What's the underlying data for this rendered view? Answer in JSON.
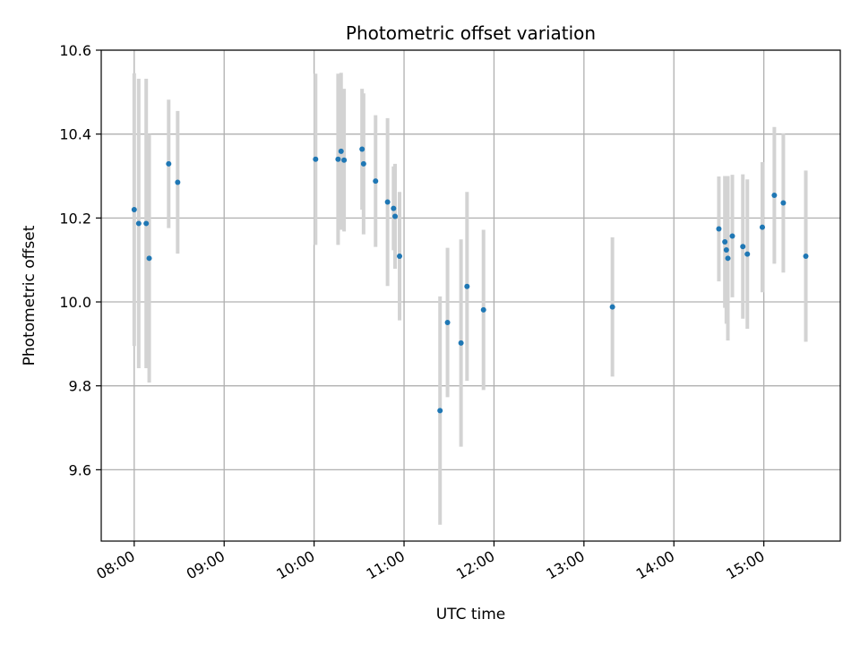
{
  "chart_data": {
    "type": "scatter",
    "title": "Photometric offset variation",
    "xlabel": "UTC time",
    "ylabel": "Photometric offset",
    "x_tick_labels": [
      "08:00",
      "09:00",
      "10:00",
      "11:00",
      "12:00",
      "13:00",
      "14:00",
      "15:00"
    ],
    "y_tick_labels": [
      "9.6",
      "9.8",
      "10.0",
      "10.2",
      "10.4",
      "10.6"
    ],
    "y_ticks": [
      9.6,
      9.8,
      10.0,
      10.2,
      10.4,
      10.6
    ],
    "xlim": [
      "07:38",
      "15:51"
    ],
    "ylim": [
      9.43,
      10.6
    ],
    "grid": true,
    "colors": {
      "point": "#1f77b4",
      "errorbar": "#d3d3d3",
      "grid": "#b0b0b0"
    },
    "series": [
      {
        "points": [
          {
            "x": "08:00",
            "y": 10.22,
            "err": 0.325
          },
          {
            "x": "08:03",
            "y": 10.187,
            "err": 0.345
          },
          {
            "x": "08:08",
            "y": 10.187,
            "err": 0.345
          },
          {
            "x": "08:10",
            "y": 10.104,
            "err": 0.296
          },
          {
            "x": "08:23",
            "y": 10.329,
            "err": 0.153
          },
          {
            "x": "08:29",
            "y": 10.285,
            "err": 0.17
          },
          {
            "x": "10:01",
            "y": 10.34,
            "err": 0.204
          },
          {
            "x": "10:16",
            "y": 10.34,
            "err": 0.204
          },
          {
            "x": "10:18",
            "y": 10.359,
            "err": 0.187
          },
          {
            "x": "10:20",
            "y": 10.338,
            "err": 0.17
          },
          {
            "x": "10:32",
            "y": 10.364,
            "err": 0.144
          },
          {
            "x": "10:33",
            "y": 10.329,
            "err": 0.168
          },
          {
            "x": "10:41",
            "y": 10.288,
            "err": 0.157
          },
          {
            "x": "10:49",
            "y": 10.238,
            "err": 0.2
          },
          {
            "x": "10:53",
            "y": 10.223,
            "err": 0.1
          },
          {
            "x": "10:54",
            "y": 10.204,
            "err": 0.125
          },
          {
            "x": "10:57",
            "y": 10.109,
            "err": 0.153
          },
          {
            "x": "11:24",
            "y": 9.741,
            "err": 0.272
          },
          {
            "x": "11:29",
            "y": 9.951,
            "err": 0.178
          },
          {
            "x": "11:38",
            "y": 9.902,
            "err": 0.247
          },
          {
            "x": "11:42",
            "y": 10.037,
            "err": 0.225
          },
          {
            "x": "11:53",
            "y": 9.981,
            "err": 0.191
          },
          {
            "x": "13:19",
            "y": 9.988,
            "err": 0.166
          },
          {
            "x": "14:30",
            "y": 10.174,
            "err": 0.125
          },
          {
            "x": "14:34",
            "y": 10.143,
            "err": 0.157
          },
          {
            "x": "14:35",
            "y": 10.124,
            "err": 0.176
          },
          {
            "x": "14:36",
            "y": 10.104,
            "err": 0.196
          },
          {
            "x": "14:39",
            "y": 10.157,
            "err": 0.146
          },
          {
            "x": "14:46",
            "y": 10.132,
            "err": 0.172
          },
          {
            "x": "14:49",
            "y": 10.114,
            "err": 0.178
          },
          {
            "x": "14:59",
            "y": 10.178,
            "err": 0.155
          },
          {
            "x": "15:07",
            "y": 10.254,
            "err": 0.163
          },
          {
            "x": "15:13",
            "y": 10.236,
            "err": 0.166
          },
          {
            "x": "15:28",
            "y": 10.109,
            "err": 0.204
          }
        ]
      }
    ]
  }
}
